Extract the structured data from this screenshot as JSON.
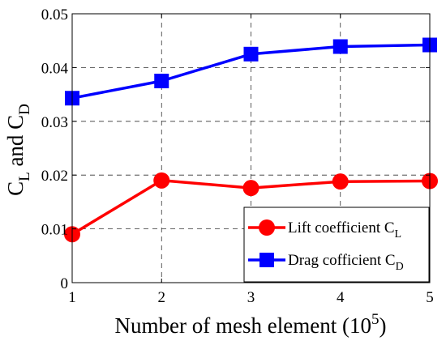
{
  "chart_data": {
    "type": "line",
    "x": [
      1,
      2,
      3,
      4,
      5
    ],
    "xlim": [
      1,
      5
    ],
    "ylim": [
      0,
      0.05
    ],
    "grid": true,
    "legend_position": "lower-right",
    "xticks": [
      "1",
      "2",
      "3",
      "4",
      "5"
    ],
    "yticks": [
      "0",
      "0.01",
      "0.02",
      "0.03",
      "0.04",
      "0.05"
    ],
    "xlabel": {
      "main": "Number of mesh element (10",
      "sup": "5",
      "end": ")"
    },
    "ylabel": {
      "c1": "C",
      "s1": "L",
      "mid": " and C",
      "s2": "D"
    },
    "series": [
      {
        "name": "Lift coefficient C",
        "sub": "L",
        "color": "#ff0000",
        "marker": "circle",
        "values": [
          0.009,
          0.019,
          0.0176,
          0.0188,
          0.0189
        ]
      },
      {
        "name": "Drag cofficient C",
        "sub": "D",
        "color": "#0000ff",
        "marker": "square",
        "values": [
          0.0343,
          0.0375,
          0.0425,
          0.0439,
          0.0442
        ]
      }
    ]
  }
}
